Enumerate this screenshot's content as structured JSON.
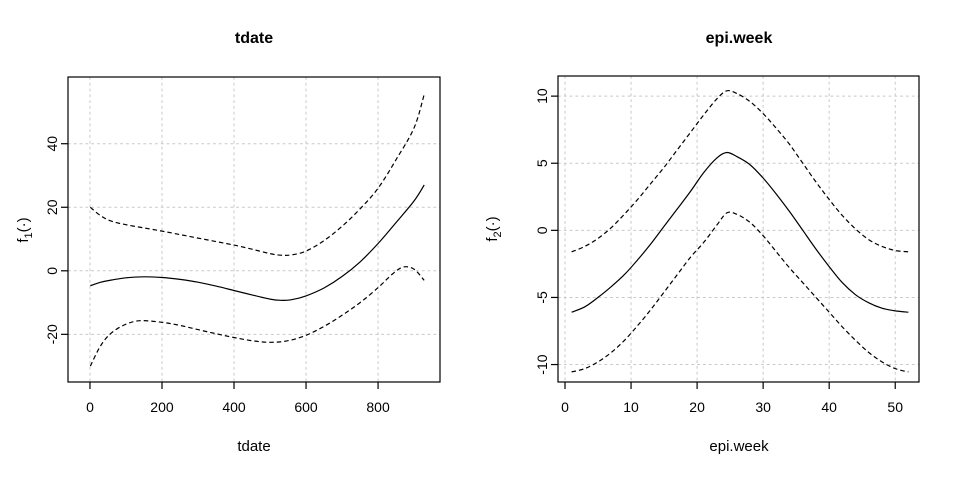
{
  "figure": {
    "background": "#ffffff",
    "line_color": "#000000",
    "grid_color": "#c8c8c8"
  },
  "chart_data": [
    {
      "type": "line",
      "title": "tdate",
      "xlabel": "tdate",
      "ylabel": "f₁(·)",
      "ylabel_parts": {
        "base": "f",
        "sub": "1",
        "args": "(·)"
      },
      "xlim": [
        -61,
        972
      ],
      "ylim": [
        -35,
        61
      ],
      "xticks": [
        0,
        200,
        400,
        600,
        800
      ],
      "yticks": [
        -20,
        0,
        20,
        40
      ],
      "grid": true,
      "legend": "none",
      "series": [
        {
          "name": "fit",
          "line_style": "solid",
          "x": [
            1,
            30,
            60,
            100,
            150,
            200,
            250,
            300,
            350,
            400,
            450,
            500,
            530,
            560,
            600,
            650,
            700,
            750,
            800,
            850,
            900,
            928
          ],
          "y": [
            -4.7,
            -3.6,
            -2.9,
            -2.2,
            -1.9,
            -2.1,
            -2.7,
            -3.6,
            -4.8,
            -6.2,
            -7.6,
            -8.9,
            -9.3,
            -9.1,
            -7.9,
            -5.4,
            -1.8,
            2.8,
            8.6,
            15.2,
            22.0,
            27.0
          ]
        },
        {
          "name": "upper-ci",
          "line_style": "dashed",
          "x": [
            1,
            30,
            60,
            100,
            150,
            200,
            250,
            300,
            350,
            400,
            450,
            500,
            530,
            560,
            600,
            650,
            700,
            750,
            800,
            850,
            900,
            928
          ],
          "y": [
            20.0,
            17.3,
            15.6,
            14.5,
            13.5,
            12.5,
            11.4,
            10.3,
            9.2,
            8.1,
            6.8,
            5.4,
            4.9,
            5.0,
            6.2,
            9.5,
            14.0,
            19.5,
            26.0,
            35.0,
            45.0,
            55.5
          ]
        },
        {
          "name": "lower-ci",
          "line_style": "dashed",
          "x": [
            1,
            30,
            60,
            100,
            140,
            200,
            250,
            300,
            350,
            400,
            450,
            500,
            550,
            600,
            650,
            700,
            750,
            800,
            840,
            870,
            900,
            928
          ],
          "y": [
            -30.0,
            -23.5,
            -19.5,
            -16.8,
            -15.7,
            -16.2,
            -17.2,
            -18.5,
            -19.8,
            -21.0,
            -22.0,
            -22.5,
            -22.0,
            -20.3,
            -17.5,
            -14.0,
            -10.0,
            -5.3,
            -1.0,
            1.2,
            0.5,
            -3.0
          ]
        }
      ]
    },
    {
      "type": "line",
      "title": "epi.week",
      "xlabel": "epi.week",
      "ylabel": "f₂(·)",
      "ylabel_parts": {
        "base": "f",
        "sub": "2",
        "args": "(·)"
      },
      "xlim": [
        -1.06,
        53.6
      ],
      "ylim": [
        -11.3,
        11.5
      ],
      "xticks": [
        0,
        10,
        20,
        30,
        40,
        50
      ],
      "yticks": [
        -10,
        -5,
        0,
        5,
        10
      ],
      "grid": true,
      "legend": "none",
      "series": [
        {
          "name": "fit",
          "line_style": "solid",
          "x": [
            1,
            3,
            5,
            7,
            9,
            11,
            13,
            15,
            17,
            19,
            21,
            23,
            24.5,
            26,
            28,
            30,
            32,
            34,
            36,
            38,
            40,
            42,
            44,
            46,
            48,
            50,
            52
          ],
          "y": [
            -6.1,
            -5.7,
            -5.0,
            -4.2,
            -3.3,
            -2.2,
            -1.0,
            0.3,
            1.6,
            2.9,
            4.3,
            5.4,
            5.8,
            5.5,
            4.9,
            3.9,
            2.7,
            1.4,
            0.0,
            -1.4,
            -2.7,
            -3.9,
            -4.8,
            -5.4,
            -5.8,
            -6.0,
            -6.1
          ]
        },
        {
          "name": "upper-ci",
          "line_style": "dashed",
          "x": [
            1,
            3,
            5,
            7,
            9,
            11,
            13,
            15,
            17,
            19,
            21,
            23,
            24.5,
            26,
            28,
            30,
            32,
            34,
            36,
            38,
            40,
            42,
            44,
            46,
            48,
            50,
            52
          ],
          "y": [
            -1.6,
            -1.2,
            -0.6,
            0.2,
            1.2,
            2.3,
            3.5,
            4.7,
            6.0,
            7.3,
            8.6,
            9.8,
            10.4,
            10.2,
            9.6,
            8.7,
            7.6,
            6.4,
            5.0,
            3.6,
            2.3,
            1.1,
            0.1,
            -0.7,
            -1.2,
            -1.5,
            -1.6
          ]
        },
        {
          "name": "lower-ci",
          "line_style": "dashed",
          "x": [
            1,
            3,
            5,
            7,
            9,
            11,
            13,
            15,
            17,
            19,
            21,
            23,
            24.5,
            26,
            28,
            30,
            32,
            34,
            36,
            38,
            40,
            42,
            44,
            46,
            48,
            50,
            52
          ],
          "y": [
            -10.55,
            -10.3,
            -9.8,
            -9.1,
            -8.2,
            -7.1,
            -5.9,
            -4.6,
            -3.3,
            -2.0,
            -0.9,
            0.4,
            1.3,
            1.2,
            0.6,
            -0.4,
            -1.6,
            -2.8,
            -3.9,
            -5.0,
            -6.1,
            -7.2,
            -8.2,
            -9.1,
            -9.8,
            -10.3,
            -10.55
          ]
        }
      ]
    }
  ]
}
